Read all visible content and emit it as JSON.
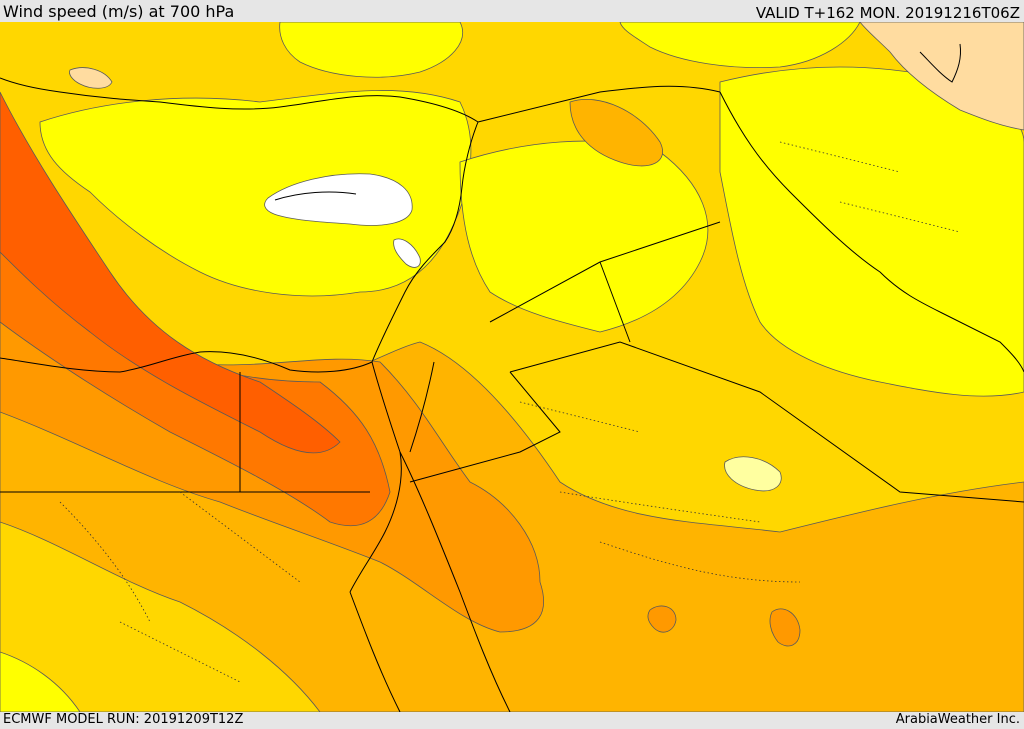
{
  "header": {
    "title": "Wind speed (m/s) at 700 hPa",
    "valid": "VALID T+162 MON. 20191216T06Z"
  },
  "footer": {
    "model_run": "ECMWF MODEL RUN: 20191209T12Z",
    "credit": "ArabiaWeather Inc."
  },
  "colors": {
    "calm": "#ffffff",
    "light": "#ffffa0",
    "yellow": "#ffff00",
    "yellow_orange": "#ffd700",
    "light_orange": "#ffb400",
    "orange": "#ff9900",
    "dark_orange": "#ff7800",
    "red_orange": "#ff5f00",
    "peach": "#ffdca0",
    "contour": "#5a5a5a",
    "border": "#000000"
  }
}
